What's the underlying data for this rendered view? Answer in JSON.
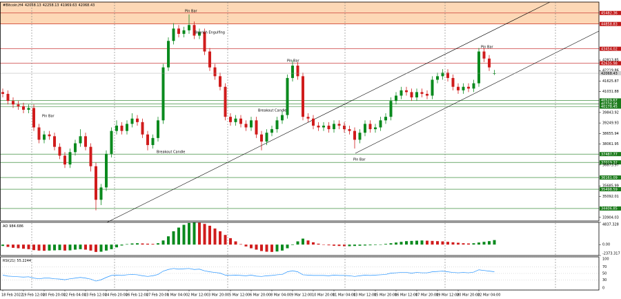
{
  "chart_data": [
    {
      "type": "candlestick",
      "title": "#Bitcoin,H4",
      "categories": [
        "18 Feb 2022",
        null,
        null,
        null,
        "19 Feb 12:00",
        null,
        null,
        null,
        "20 Feb 20:00",
        null,
        null,
        null,
        "22 Feb 04:00",
        null,
        null,
        null,
        "23 Feb 12:00",
        null,
        null,
        null,
        "24 Feb 20:00",
        null,
        null,
        null,
        "26 Feb 12:00",
        null,
        null,
        null,
        "27 Feb 20:00",
        null,
        null,
        null,
        "1 Mar 04:00",
        null,
        null,
        null,
        "2 Mar 12:00",
        null,
        null,
        null,
        "3 Mar 20:00",
        null,
        null,
        null,
        "5 Mar 12:00",
        null,
        null,
        null,
        "6 Mar 20:00",
        null,
        null,
        null,
        "8 Mar 04:00",
        null,
        null,
        null,
        "9 Mar 12:00",
        null,
        null,
        null,
        "10 Mar 20:00",
        null,
        null,
        null,
        "11 Mar 04:00",
        null,
        null,
        null,
        "13 Mar 12:00",
        null,
        null,
        null,
        "15 Mar 20:00",
        null,
        null,
        null,
        "16 Mar 12:00",
        null,
        null,
        null,
        "17 Mar 20:00",
        null,
        null,
        null,
        "19 Mar 12:00",
        null,
        null,
        null,
        "20 Mar 20:00",
        null,
        null,
        null,
        "22 Mar 04:00",
        null,
        null,
        null
      ],
      "open": [
        41000,
        40900,
        40500,
        40300,
        40200,
        40000,
        40100,
        39000,
        38300,
        38600,
        38500,
        37900,
        37400,
        36900,
        37600,
        38100,
        38500,
        37900,
        36800,
        34900,
        35600,
        37500,
        38800,
        39100,
        38800,
        39200,
        39500,
        39300,
        38600,
        38000,
        38400,
        39400,
        42400,
        43900,
        44600,
        44300,
        44500,
        44800,
        44200,
        44400,
        43300,
        42400,
        41900,
        41300,
        39600,
        39300,
        39500,
        39200,
        39000,
        39400,
        38600,
        38200,
        38700,
        38900,
        39400,
        39700,
        41800,
        42500,
        41900,
        39600,
        39500,
        39100,
        39000,
        39100,
        38900,
        39200,
        39100,
        38900,
        38800,
        38300,
        38700,
        39200,
        38900,
        39000,
        39400,
        39600,
        40500,
        40800,
        41100,
        41000,
        40700,
        41000,
        40900,
        40800,
        41700,
        41900,
        42100,
        41800,
        41300,
        41100,
        41300,
        41200,
        41500,
        43300,
        42900,
        42058.13
      ],
      "high": [
        41200,
        41100,
        40700,
        40500,
        40400,
        40300,
        40300,
        39200,
        38800,
        38800,
        38700,
        38100,
        37600,
        37800,
        38300,
        38900,
        38700,
        38100,
        37000,
        35800,
        37700,
        39000,
        39400,
        39300,
        39400,
        39800,
        39700,
        39500,
        38800,
        38600,
        39600,
        42600,
        44100,
        44900,
        44800,
        44700,
        45400,
        45000,
        44600,
        44600,
        43500,
        42600,
        42100,
        41500,
        39800,
        39700,
        39700,
        39400,
        39600,
        39600,
        38800,
        38900,
        39100,
        39600,
        39900,
        42000,
        42800,
        42700,
        42100,
        39800,
        39700,
        39300,
        39300,
        39300,
        39400,
        39400,
        39300,
        39100,
        39000,
        38900,
        39400,
        39400,
        39200,
        39600,
        39800,
        40700,
        41000,
        41300,
        41300,
        41200,
        41200,
        41200,
        41100,
        41900,
        42100,
        42300,
        42300,
        42000,
        41500,
        41500,
        41500,
        41700,
        43500,
        43500,
        43100,
        42258.13
      ],
      "low": [
        40700,
        40300,
        40100,
        40000,
        39800,
        39800,
        38800,
        38100,
        38100,
        38300,
        37700,
        37200,
        36700,
        36700,
        37400,
        37900,
        37700,
        36500,
        34300,
        34600,
        35400,
        37300,
        38600,
        38600,
        38600,
        39000,
        39100,
        38400,
        37700,
        37800,
        38200,
        39200,
        42200,
        43700,
        44100,
        44100,
        44300,
        44000,
        44000,
        43100,
        42200,
        41700,
        41100,
        39400,
        39100,
        39100,
        39000,
        38800,
        38800,
        38400,
        37700,
        38000,
        38500,
        38700,
        39200,
        39500,
        41600,
        41700,
        39400,
        39300,
        38900,
        38800,
        38800,
        38700,
        38700,
        38900,
        38700,
        38600,
        37800,
        38100,
        38500,
        38700,
        38700,
        38800,
        39200,
        39400,
        40300,
        40600,
        40800,
        40500,
        40500,
        40700,
        40600,
        40600,
        41500,
        41700,
        41600,
        41100,
        40900,
        40900,
        41000,
        41000,
        41300,
        42700,
        42200,
        41969.63
      ],
      "close": [
        40900,
        40500,
        40300,
        40200,
        40000,
        40100,
        39000,
        38300,
        38600,
        38500,
        37900,
        37400,
        36900,
        37600,
        38100,
        38500,
        37900,
        36800,
        34900,
        35600,
        37500,
        38800,
        39100,
        38800,
        39200,
        39500,
        39300,
        38600,
        38000,
        38400,
        39400,
        42400,
        43900,
        44600,
        44300,
        44500,
        44800,
        44200,
        44400,
        43300,
        42400,
        41900,
        41300,
        39600,
        39300,
        39500,
        39200,
        39000,
        39400,
        38600,
        38200,
        38700,
        38900,
        39400,
        39700,
        41800,
        42500,
        41900,
        39600,
        39500,
        39100,
        39000,
        39100,
        38900,
        39200,
        39100,
        38900,
        38800,
        38300,
        38700,
        39200,
        38900,
        39000,
        39400,
        39600,
        40500,
        40800,
        41100,
        41000,
        40700,
        41000,
        40900,
        40800,
        41700,
        41900,
        42100,
        41800,
        41300,
        41100,
        41300,
        41200,
        41500,
        43300,
        42900,
        42400,
        42068.43
      ],
      "up_color": "#0a8a1e",
      "down_color": "#d01c1c",
      "ylim": [
        33700,
        46100
      ],
      "yticks": [
        42813.85,
        42219.86,
        41625.87,
        41031.88,
        39843.92,
        39249.93,
        38655.94,
        38061.95,
        36873.97,
        35685.99,
        35092.01,
        33904.03
      ],
      "levels": [
        {
          "value": 45482.36,
          "color": "#c01818"
        },
        {
          "value": 44858.83,
          "color": "#c01818"
        },
        {
          "value": 43454.02,
          "color": "#c01818"
        },
        {
          "value": 42635.98,
          "color": "#c01818"
        },
        {
          "value": 40529.67,
          "color": "#1a7a1a"
        },
        {
          "value": 40334.04,
          "color": "#1a7a1a"
        },
        {
          "value": 40178.45,
          "color": "#1a7a1a"
        },
        {
          "value": 37487.77,
          "color": "#1a7a1a"
        },
        {
          "value": 37019.32,
          "color": "#1a7a1a"
        },
        {
          "value": 36161.09,
          "color": "#1a7a1a"
        },
        {
          "value": 35498.59,
          "color": "#1a7a1a"
        },
        {
          "value": 34406.85,
          "color": "#1a7a1a"
        }
      ],
      "zone": {
        "from": 44858.83,
        "color": "#fdd8b6"
      },
      "annotations": [
        "Pin Bar",
        "Bearish Engulfing",
        "Pin Bar",
        "Pin Bar",
        "Pin Bar",
        "Breakout Candle",
        "Breakout Candle",
        "Pin Bar"
      ]
    },
    {
      "type": "histogram",
      "name": "AO",
      "values": [
        -300,
        -500,
        -700,
        -800,
        -900,
        -1000,
        -1200,
        -1300,
        -1350,
        -1300,
        -1250,
        -1200,
        -1300,
        -1250,
        -1100,
        -1000,
        -1100,
        -1300,
        -1600,
        -1550,
        -1300,
        -1000,
        -600,
        -200,
        100,
        250,
        300,
        250,
        200,
        150,
        300,
        900,
        1800,
        2900,
        3700,
        4300,
        4700,
        4837.328,
        4750,
        4500,
        4100,
        3500,
        2900,
        2100,
        1400,
        700,
        100,
        -400,
        -800,
        -1100,
        -1400,
        -1550,
        -1600,
        -1500,
        -1300,
        -800,
        -100,
        700,
        1300,
        900,
        500,
        200,
        0,
        -150,
        -250,
        -300,
        -350,
        -350,
        -300,
        -250,
        -200,
        -150,
        -100,
        0,
        150,
        300,
        450,
        600,
        750,
        800,
        850,
        900,
        850,
        800,
        750,
        700,
        600,
        500,
        400,
        300,
        250,
        300,
        450,
        600,
        750,
        984.686
      ],
      "up_color": "#0a8a1e",
      "down_color": "#d01c1c",
      "ylim": [
        -2373.317,
        4837.328
      ],
      "yticks": [
        -2373.317,
        {
          "value": 0,
          "label": "0.00"
        },
        4837.328
      ]
    },
    {
      "type": "line",
      "name": "RSI(21)",
      "values": [
        45,
        42,
        41,
        40,
        39,
        40,
        36,
        34,
        36,
        36,
        34,
        33,
        31,
        34,
        36,
        38,
        36,
        33,
        27,
        31,
        38,
        44,
        45,
        44,
        46,
        47,
        46,
        43,
        41,
        43,
        47,
        57,
        62,
        65,
        63,
        64,
        65,
        62,
        63,
        58,
        55,
        53,
        51,
        45,
        44,
        45,
        44,
        43,
        45,
        42,
        41,
        43,
        44,
        46,
        47,
        55,
        58,
        55,
        46,
        45,
        44,
        44,
        44,
        43,
        45,
        44,
        44,
        43,
        41,
        43,
        45,
        44,
        45,
        46,
        47,
        51,
        52,
        53,
        53,
        51,
        53,
        52,
        52,
        55,
        56,
        57,
        55,
        53,
        52,
        53,
        52,
        54,
        61,
        59,
        57,
        55.2244
      ],
      "color": "#1e90ff",
      "ylim": [
        0,
        100
      ],
      "yticks": [
        0,
        30,
        50,
        70,
        100
      ]
    }
  ]
}
